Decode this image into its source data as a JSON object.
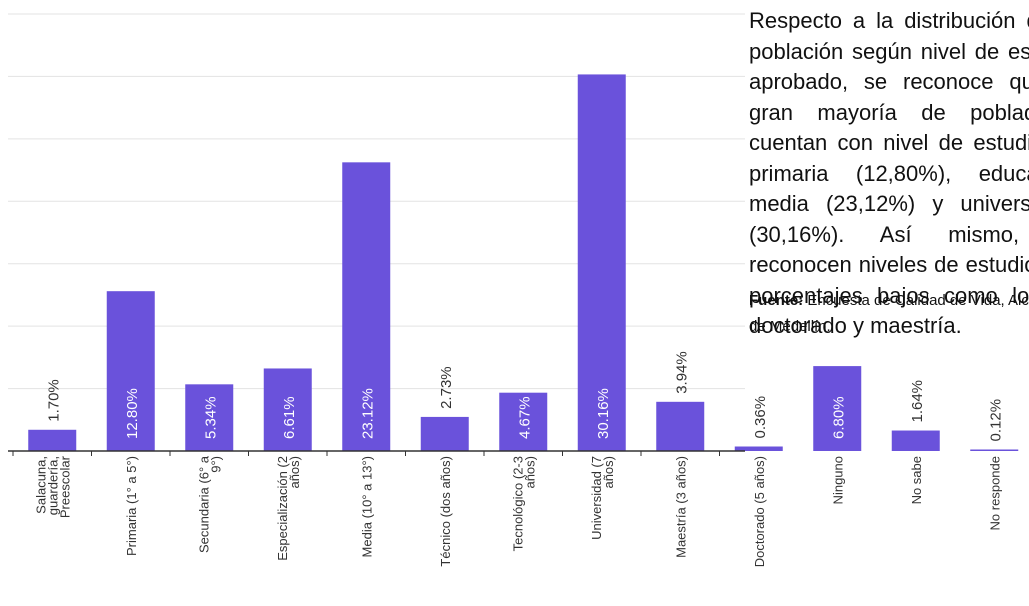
{
  "chart_data": {
    "type": "bar",
    "categories": [
      [
        "Salacuna,",
        "guardería,",
        "Preescolar"
      ],
      [
        "Primaria (1° a 5°)"
      ],
      [
        "Secundaria (6° a",
        "9°)"
      ],
      [
        "Especialización (2",
        "años)"
      ],
      [
        "Media (10° a 13°)"
      ],
      [
        "Técnico (dos años)"
      ],
      [
        "Tecnológico (2-3",
        "años)"
      ],
      [
        "Universidad (7",
        "años)"
      ],
      [
        "Maestría (3 años)"
      ],
      [
        "Doctorado (5 años)"
      ],
      [
        "Ninguno"
      ],
      [
        "No sabe"
      ],
      [
        "No responde"
      ]
    ],
    "values": [
      1.7,
      12.8,
      5.34,
      6.61,
      23.12,
      2.73,
      4.67,
      30.16,
      3.94,
      0.36,
      6.8,
      1.64,
      0.12
    ],
    "data_labels": [
      "1.70%",
      "12.80%",
      "5.34%",
      "6.61%",
      "23.12%",
      "2.73%",
      "4.67%",
      "30.16%",
      "3.94%",
      "0.36%",
      "6.80%",
      "1.64%",
      "0.12%"
    ],
    "ylim": [
      0,
      35
    ],
    "grid": true,
    "bar_color": "#6a52db",
    "grid_color": "#e3e3e3",
    "axis_color": "#333333"
  },
  "text": {
    "paragraph": "Respecto a la distribución de la población según nivel de estudio aprobado, se reconoce que la gran mayoría de pobladores cuentan con nivel de estudio de primaria (12,80%), educación media (23,12%) y universitaria (30,16%). Así mismo, se reconocen niveles de estudio con porcentajes bajos como lo son doctorado y maestría.",
    "source_label": "Fuente:",
    "source_text": " Encuesta de Calidad de Vida, Alcaldía de Medellín."
  }
}
